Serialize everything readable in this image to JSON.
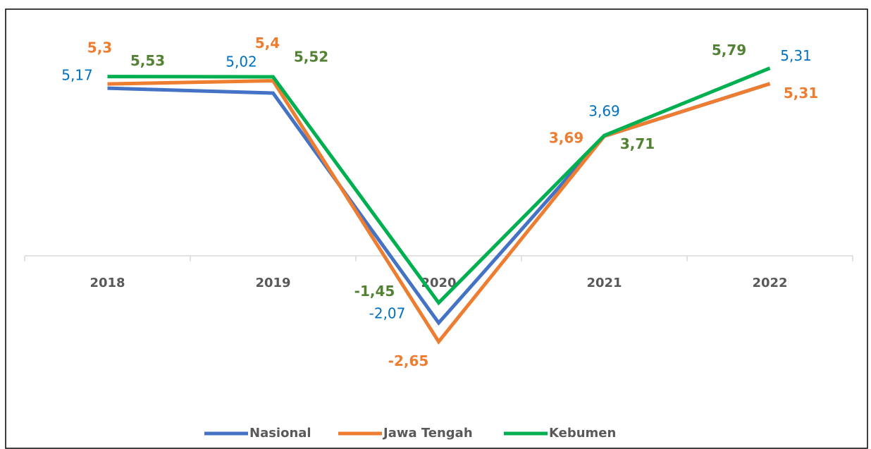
{
  "chart_data": {
    "type": "line",
    "categories": [
      "2018",
      "2019",
      "2020",
      "2021",
      "2022"
    ],
    "series": [
      {
        "name": "Nasional",
        "color": "#4472c4",
        "values": [
          5.17,
          5.02,
          -2.07,
          3.69,
          5.31
        ],
        "value_labels": [
          "5,17",
          "5,02",
          "-2,07",
          "3,69",
          "5,31"
        ]
      },
      {
        "name": "Jawa Tengah",
        "color": "#ed7d31",
        "values": [
          5.3,
          5.4,
          -2.65,
          3.69,
          5.31
        ],
        "value_labels": [
          "5,3",
          "5,4",
          "-2,65",
          "3,69",
          "5,31"
        ]
      },
      {
        "name": "Kebumen",
        "color": "#00b050",
        "values": [
          5.53,
          5.52,
          -1.45,
          3.71,
          5.79
        ],
        "value_labels": [
          "5,53",
          "5,52",
          "-1,45",
          "3,71",
          "5,79"
        ]
      }
    ],
    "ylim": [
      -4.7,
      7.5
    ],
    "legend": "bottom"
  }
}
